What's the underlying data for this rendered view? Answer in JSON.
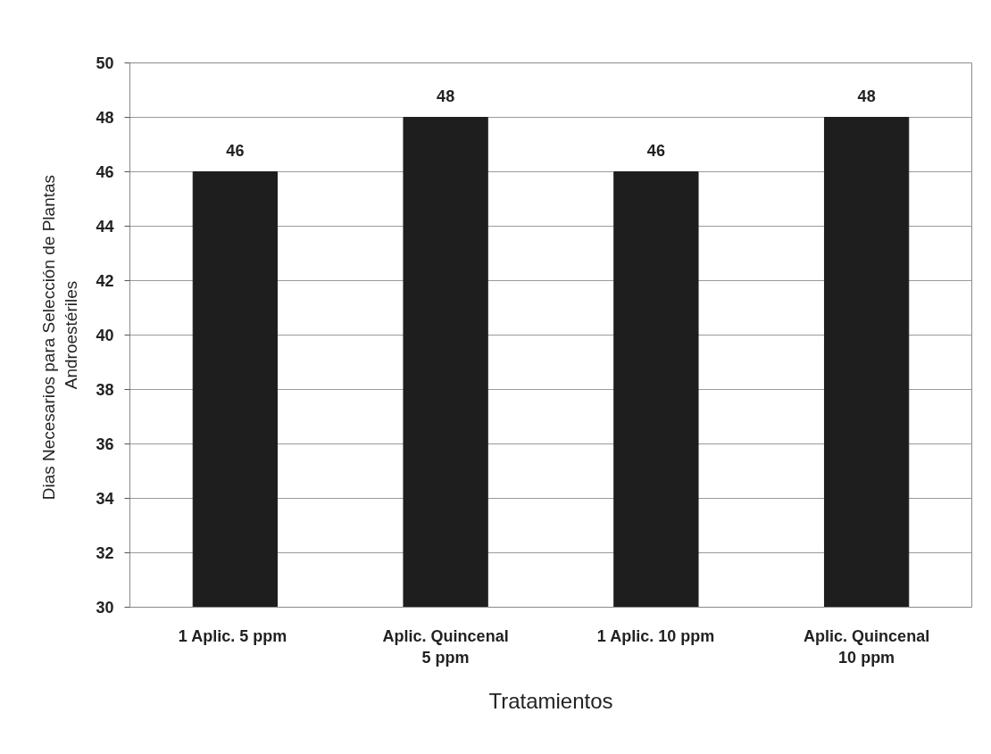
{
  "chart_data": {
    "type": "bar",
    "xlabel": "Tratamientos",
    "ylabel": "Dias Necesarios para  Selección de Plantas Androestériles",
    "categories": [
      "1 Aplic.  5 ppm",
      "Aplic. Quincenal 5 ppm",
      "1 Aplic. 10 ppm",
      "Aplic. Quincenal 10 ppm"
    ],
    "values": [
      46,
      48,
      46,
      48
    ],
    "color": "#1e1e1e",
    "ylim": [
      30,
      50
    ],
    "yticks": [
      30,
      32,
      34,
      36,
      38,
      40,
      42,
      44,
      46,
      48,
      50
    ],
    "grid": "y",
    "data_labels": true
  }
}
